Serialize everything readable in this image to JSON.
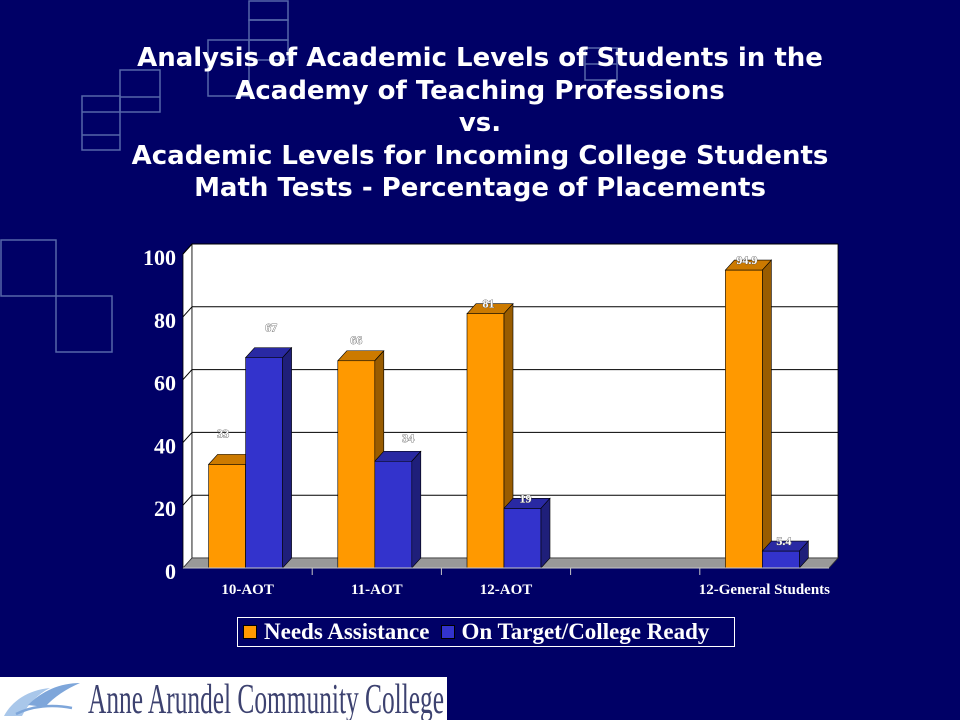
{
  "colors": {
    "background": "#000066",
    "title_text": "#ffffff",
    "plot_area": "#ffffff",
    "floor": "#999999",
    "decor_lines": "#5566a8",
    "logo_background": "#ffffff",
    "logo_text": "#3d4270",
    "logo_mark": "#7ea6da"
  },
  "icons": {
    "college_logo": "bird-logo-icon",
    "decoration": "square-outline-pattern"
  },
  "footer": {
    "logo_text": "Anne Arundel Community College"
  },
  "chart_data": {
    "type": "bar",
    "3d": true,
    "title": [
      "Analysis of Academic Levels of Students in the",
      "Academy of Teaching Professions",
      "vs.",
      "Academic Levels for Incoming College Students",
      "Math Tests - Percentage of Placements"
    ],
    "categories": [
      "10-AOT",
      "11-AOT",
      "12-AOT",
      "",
      "12-General Students"
    ],
    "series": [
      {
        "name": "Needs Assistance",
        "color": "#FF9900",
        "values": [
          33,
          66,
          81,
          null,
          94.9
        ]
      },
      {
        "name": "On Target/College Ready",
        "color": "#3333CC",
        "values": [
          67,
          34,
          19,
          null,
          5.4
        ]
      }
    ],
    "xlabel": "",
    "ylabel": "",
    "ylim": [
      0,
      100
    ],
    "yticks": [
      0,
      20,
      40,
      60,
      80,
      100
    ],
    "data_labels": true,
    "grid": true,
    "legend": "bottom"
  }
}
